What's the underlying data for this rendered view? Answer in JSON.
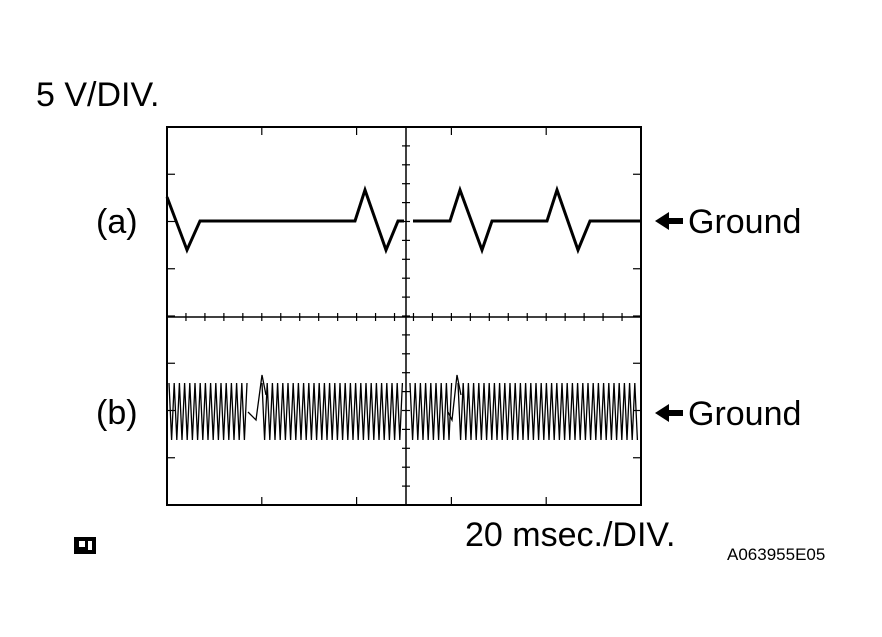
{
  "scale": {
    "voltage": "5 V/DIV.",
    "time": "20 msec./DIV."
  },
  "channels": [
    {
      "label": "(a)",
      "ground": "Ground"
    },
    {
      "label": "(b)",
      "ground": "Ground"
    }
  ],
  "figure_id": "A063955E05"
}
